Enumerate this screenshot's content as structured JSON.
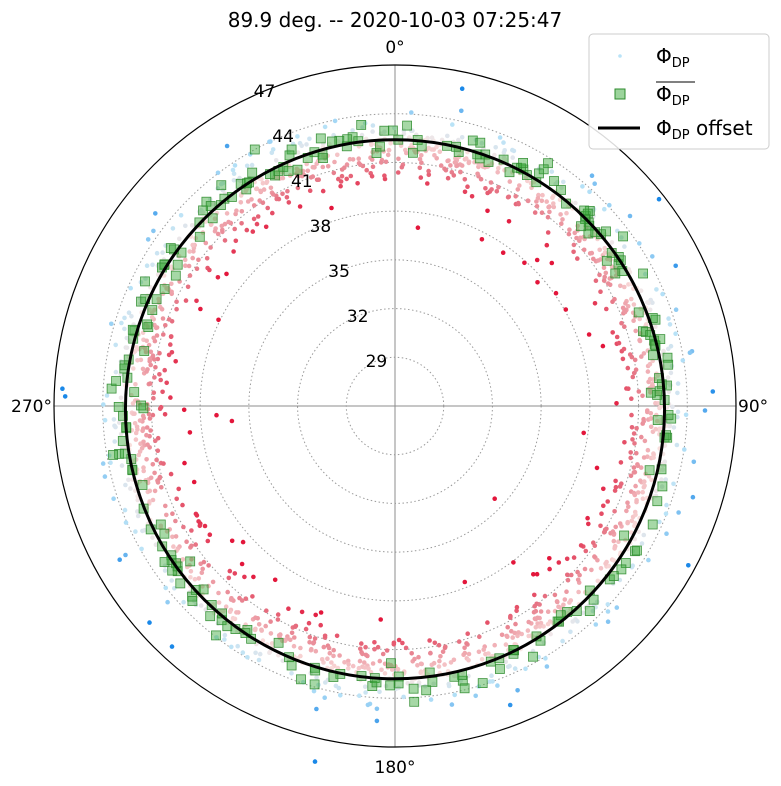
{
  "chart_data": {
    "type": "scatter",
    "projection": "polar",
    "title": "89.9 deg. -- 2020-10-03 07:25:47",
    "theta_zero": "N",
    "theta_direction": "clockwise",
    "theta_ticks": [
      "0°",
      "90°",
      "180°",
      "270°"
    ],
    "radial_ticks": [
      "29",
      "32",
      "35",
      "38",
      "41",
      "44",
      "47"
    ],
    "radial_tick_values": [
      29,
      32,
      35,
      38,
      41,
      44,
      47
    ],
    "rlim": [
      26,
      47
    ],
    "grid": true,
    "legend_position": "top-right",
    "legend": [
      {
        "symbol": "Φ",
        "sub": "DP",
        "overline": false,
        "marker": "dot",
        "color": "#b9e3f7"
      },
      {
        "symbol": "Φ",
        "sub": "DP",
        "overline": true,
        "marker": "square",
        "color": "#3aa93a"
      },
      {
        "symbol": "Φ",
        "sub": "DP",
        "suffix": " offset",
        "overline": false,
        "marker": "line",
        "color": "#000000"
      }
    ],
    "offset_line": {
      "radius": 42.6,
      "x_shift": 0.0,
      "y_shift": -0.2,
      "color": "#000000"
    },
    "raw_phidp_colormap": {
      "low": "#e3163b",
      "mid": "#fbe7e4",
      "center": 42.6,
      "high": "#1a88e8"
    },
    "raw_phidp_band": {
      "mean_radius": 42.4,
      "spread": 1.6,
      "outlier_spread": 3.6,
      "count": 1600
    },
    "avg_phidp": {
      "mean_radius": 42.7,
      "spread": 0.45,
      "count": 240,
      "color": "#3aa93a"
    }
  }
}
